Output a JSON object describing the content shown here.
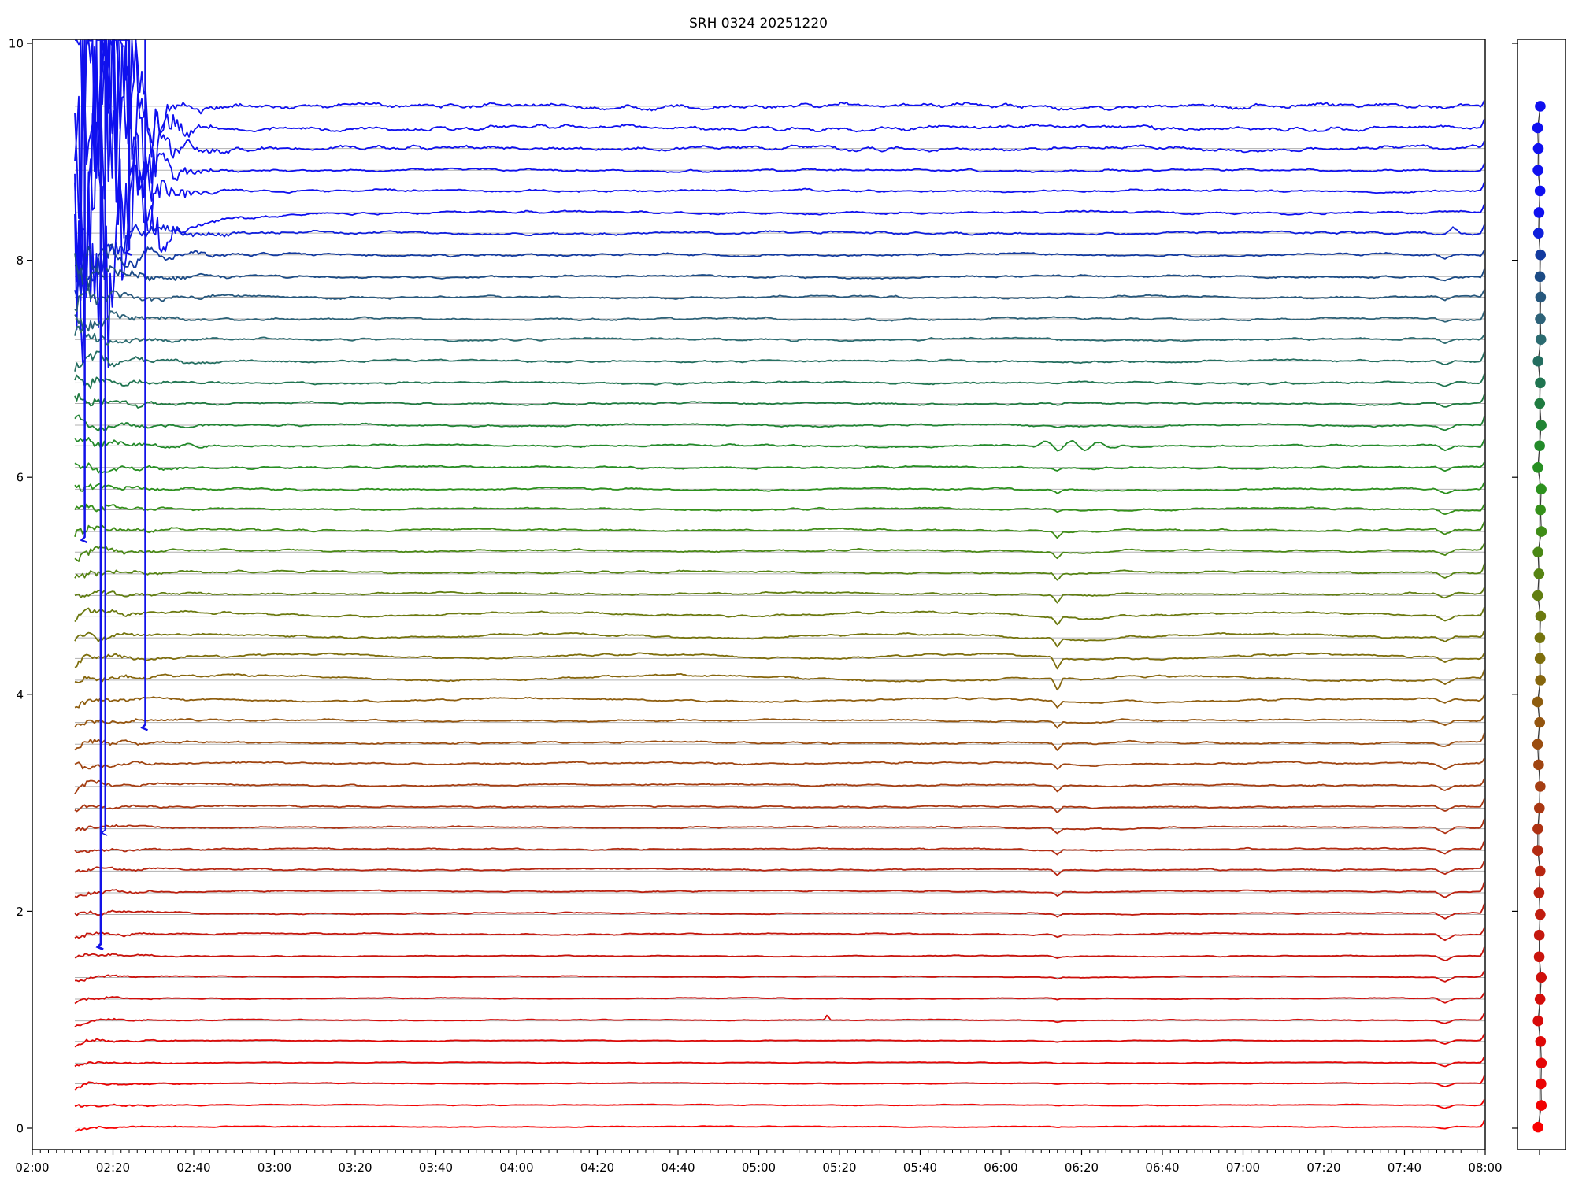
{
  "title": "SRH 0324 20251220",
  "chart_data": {
    "type": "line",
    "kind": "multi-trace seismic helicorder stack with station marker panel",
    "title": "SRH 0324 20251220",
    "x_axis": {
      "start": "02:00",
      "end": "08:00",
      "major_step_min": 20,
      "minor_step_min": 2,
      "data_start": "02:10",
      "tick_labels": [
        "02:00",
        "02:20",
        "02:40",
        "03:00",
        "03:20",
        "03:40",
        "04:00",
        "04:20",
        "04:40",
        "05:00",
        "05:20",
        "05:40",
        "06:00",
        "06:20",
        "06:40",
        "07:00",
        "07:20",
        "07:40",
        "08:00"
      ]
    },
    "y_axis": {
      "min": -0.2,
      "max": 10.05,
      "ticks": [
        0,
        2,
        4,
        6,
        8,
        10
      ],
      "tick_labels": [
        "0",
        "2",
        "4",
        "6",
        "8",
        "10"
      ]
    },
    "style": {
      "baseline_color": "#b0b0b0",
      "spike_color": "#1212e8",
      "axis_color": "#000000",
      "trace_width": 1.8
    },
    "events": {
      "noise_burst": {
        "start": "02:10",
        "end": "02:31",
        "affects": "top blue traces, clipped at plot top"
      },
      "long_spikes": [
        {
          "x_time": "02:13",
          "down_to_value": 5.45,
          "w": 2.5
        },
        {
          "x_time": "02:17",
          "down_to_value": 1.7,
          "w": 3
        },
        {
          "x_time": "02:18",
          "down_to_value": 2.75,
          "w": 1.5
        },
        {
          "x_time": "02:24",
          "down_to_value": 8.1,
          "w": 2.5
        },
        {
          "x_time": "02:28",
          "down_to_value": 3.72,
          "w": 2.5
        }
      ],
      "notch_1": {
        "time": "06:14",
        "affects": "olive/brown/red traces, sharp dip then shallow trough"
      },
      "notch_2": {
        "time": "07:50",
        "affects": "most traces, small V dip"
      },
      "micro_spike": {
        "time": "05:17",
        "trace_value": 0.99
      }
    },
    "traces": [
      {
        "v": 9.42,
        "c": "#0f10ef",
        "a": 3.0,
        "b": 260,
        "l": 0
      },
      {
        "v": 9.22,
        "c": "#0f10ef",
        "a": 2.6,
        "b": 260,
        "l": 0
      },
      {
        "v": 9.03,
        "c": "#0f10ef",
        "a": 2.5,
        "b": 240,
        "l": 0
      },
      {
        "v": 8.83,
        "c": "#0f10ef",
        "a": 1.5,
        "b": 210,
        "l": 0
      },
      {
        "v": 8.64,
        "c": "#0f10ef",
        "a": 1.6,
        "b": 210,
        "l": 0
      },
      {
        "v": 8.44,
        "c": "#0f10ef",
        "a": 1.5,
        "b": 190,
        "l": 0,
        "r": 1
      },
      {
        "v": 8.25,
        "c": "#0e1fdb",
        "a": 1.6,
        "b": 70,
        "l": 0,
        "u": 1
      },
      {
        "v": 8.05,
        "c": "#123a9f",
        "a": 1.5,
        "b": 40,
        "l": 0,
        "d2": 5
      },
      {
        "v": 7.85,
        "c": "#1b4b85",
        "a": 1.4,
        "b": 26,
        "l": 0,
        "d2": 5
      },
      {
        "v": 7.66,
        "c": "#27587d",
        "a": 1.4,
        "b": 20,
        "l": 0,
        "d2": 5
      },
      {
        "v": 7.46,
        "c": "#2d6278",
        "a": 1.4,
        "b": 16,
        "l": 0,
        "d2": 5
      },
      {
        "v": 7.27,
        "c": "#2b6b70",
        "a": 1.4,
        "b": 14,
        "l": 0,
        "d2": 5
      },
      {
        "v": 7.07,
        "c": "#246e60",
        "a": 1.4,
        "b": 13,
        "l": 0,
        "d2": 5
      },
      {
        "v": 6.87,
        "c": "#1f7450",
        "a": 1.3,
        "b": 12,
        "l": 0,
        "d2": 5
      },
      {
        "v": 6.68,
        "c": "#1f7b40",
        "a": 1.3,
        "b": 11,
        "l": 0,
        "d1": 2,
        "d2": 5
      },
      {
        "v": 6.48,
        "c": "#218434",
        "a": 1.3,
        "b": 10,
        "l": 0,
        "d1": 2,
        "d2": 5
      },
      {
        "v": 6.29,
        "c": "#238a2a",
        "a": 1.3,
        "b": 10,
        "l": 0,
        "d1": 2,
        "d2": 5,
        "w": 1
      },
      {
        "v": 6.09,
        "c": "#268f22",
        "a": 1.3,
        "b": 9,
        "l": 0,
        "d1": 3,
        "d2": 5
      },
      {
        "v": 5.89,
        "c": "#2c911d",
        "a": 1.3,
        "b": 9,
        "l": 0,
        "d1": 3,
        "d2": 5
      },
      {
        "v": 5.7,
        "c": "#35901a",
        "a": 1.2,
        "b": 8,
        "l": 1,
        "d1": 3,
        "d2": 6
      },
      {
        "v": 5.5,
        "c": "#3f8c17",
        "a": 1.2,
        "b": 8,
        "l": 2,
        "d1": 8,
        "d2": 6
      },
      {
        "v": 5.31,
        "c": "#4a8815",
        "a": 1.2,
        "b": 7,
        "l": 2,
        "d1": 8,
        "d2": 6
      },
      {
        "v": 5.11,
        "c": "#568313",
        "a": 1.2,
        "b": 7,
        "l": 2,
        "d1": 9,
        "d2": 6
      },
      {
        "v": 4.91,
        "c": "#617e11",
        "a": 1.2,
        "b": 7,
        "l": 2.5,
        "d1": 10,
        "d2": 6
      },
      {
        "v": 4.72,
        "c": "#6b790f",
        "a": 1.2,
        "b": 6,
        "l": 2.5,
        "d1": 10,
        "d2": 6,
        "s": 4
      },
      {
        "v": 4.52,
        "c": "#75740d",
        "a": 1.2,
        "b": 6,
        "l": 2.5,
        "d1": 11,
        "d2": 6,
        "s": 4
      },
      {
        "v": 4.33,
        "c": "#7e6e0c",
        "a": 1.2,
        "b": 6,
        "l": 3,
        "d1": 13,
        "d2": 6,
        "s": 4.5
      },
      {
        "v": 4.13,
        "c": "#86660d",
        "a": 1.3,
        "b": 6,
        "l": 3,
        "d1": 15,
        "d2": 6,
        "s": 6
      },
      {
        "v": 3.93,
        "c": "#8e5d0e",
        "a": 1.1,
        "b": 5,
        "l": 2.5,
        "d1": 9,
        "d2": 6,
        "s": 3
      },
      {
        "v": 3.74,
        "c": "#94550f",
        "a": 1.1,
        "b": 5,
        "l": 2.5,
        "d1": 8,
        "d2": 6
      },
      {
        "v": 3.54,
        "c": "#9a4d10",
        "a": 1.1,
        "b": 5,
        "l": 2,
        "d1": 8,
        "d2": 6
      },
      {
        "v": 3.35,
        "c": "#a04511",
        "a": 1.1,
        "b": 5,
        "l": 2,
        "d1": 7,
        "d2": 6
      },
      {
        "v": 3.15,
        "c": "#a53e12",
        "a": 1.0,
        "b": 5,
        "l": 2,
        "d1": 7,
        "d2": 7
      },
      {
        "v": 2.95,
        "c": "#aa3712",
        "a": 0.9,
        "b": 4,
        "l": 2,
        "d1": 7,
        "d2": 7
      },
      {
        "v": 2.76,
        "c": "#ae3112",
        "a": 0.9,
        "b": 4,
        "l": 2,
        "d1": 6,
        "d2": 7
      },
      {
        "v": 2.56,
        "c": "#b32b11",
        "a": 0.9,
        "b": 4,
        "l": 2,
        "d1": 6,
        "d2": 7
      },
      {
        "v": 2.37,
        "c": "#b72611",
        "a": 0.9,
        "b": 4,
        "l": 2,
        "d1": 6,
        "d2": 7
      },
      {
        "v": 2.17,
        "c": "#bb2110",
        "a": 0.8,
        "b": 4,
        "l": 2,
        "d1": 5,
        "d2": 7
      },
      {
        "v": 1.97,
        "c": "#c01c0f",
        "a": 0.8,
        "b": 4,
        "l": 1.5,
        "d1": 4,
        "d2": 7
      },
      {
        "v": 1.78,
        "c": "#c4180e",
        "a": 0.8,
        "b": 4,
        "l": 1.5,
        "d1": 3,
        "d2": 7
      },
      {
        "v": 1.58,
        "c": "#c9140d",
        "a": 0.6,
        "b": 3,
        "l": 1,
        "d1": 2,
        "d2": 6
      },
      {
        "v": 1.39,
        "c": "#ce100b",
        "a": 0.6,
        "b": 3,
        "l": 1,
        "d1": 2,
        "d2": 6
      },
      {
        "v": 1.19,
        "c": "#d30d0a",
        "a": 0.6,
        "b": 3,
        "l": 1,
        "d1": 2,
        "d2": 6
      },
      {
        "v": 0.99,
        "c": "#d80a09",
        "a": 0.6,
        "b": 3,
        "l": 1,
        "d1": 2,
        "d2": 5,
        "k": 1
      },
      {
        "v": 0.8,
        "c": "#de0807",
        "a": 0.5,
        "b": 3,
        "l": 1,
        "d1": 1,
        "d2": 5
      },
      {
        "v": 0.6,
        "c": "#e40606",
        "a": 0.5,
        "b": 3,
        "l": 0.5,
        "d1": 1,
        "d2": 5
      },
      {
        "v": 0.41,
        "c": "#ea0404",
        "a": 0.5,
        "b": 3,
        "l": 0.5,
        "d1": 1,
        "d2": 4
      },
      {
        "v": 0.21,
        "c": "#f10202",
        "a": 0.5,
        "b": 3,
        "l": 0.5,
        "d1": 1,
        "d2": 4
      },
      {
        "v": 0.01,
        "c": "#f80101",
        "a": 0.5,
        "b": 3,
        "l": 0.5,
        "d1": 1,
        "d2": 3
      }
    ]
  },
  "right_panel": {
    "description": "one colored station marker per trace connected by a thin dark line over a light vertical guide",
    "dot_radius": 6.8,
    "marker_x_jitter": 2.5,
    "line_color": "#3a3a3a",
    "guide_color": "#c4c4c4",
    "y_ticks": [
      0,
      2,
      4,
      6,
      8,
      10
    ],
    "bottom_tick": true
  }
}
